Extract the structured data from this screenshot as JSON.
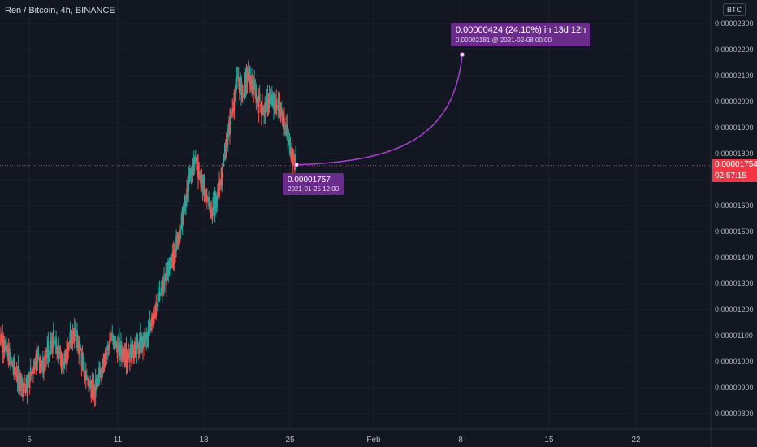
{
  "legend": {
    "title": "Ren / Bitcoin, 4h, BINANCE"
  },
  "currency": "BTC",
  "price_tag": {
    "price": "0.00001754",
    "countdown": "02:57:15"
  },
  "annotations": {
    "start_point": {
      "price": "0.00001757",
      "date": "2021-01-25 12:00"
    },
    "projection": {
      "main": "0.00000424 (24.10%) in 13d 12h",
      "sub": "0.00002181 @ 2021-02-08 00:00"
    }
  },
  "colors": {
    "background": "#131722",
    "up": "#26a69a",
    "down": "#ef5350",
    "projection": "#a83fd1",
    "annotation_bg": "#6a2c8a",
    "price_tag": "#f23645"
  },
  "chart_data": {
    "type": "candlestick",
    "symbol": "Ren / Bitcoin",
    "interval": "4h",
    "exchange": "BINANCE",
    "y_ticks": [
      "0.00000800",
      "0.00000900",
      "0.00001000",
      "0.00001100",
      "0.00001200",
      "0.00001300",
      "0.00001400",
      "0.00001500",
      "0.00001600",
      "0.00001700",
      "0.00001800",
      "0.00001900",
      "0.00002000",
      "0.00002100",
      "0.00002200",
      "0.00002300"
    ],
    "y_range": [
      7.7e-06,
      2.32e-05
    ],
    "x_ticks": [
      "5",
      "11",
      "18",
      "25",
      "Feb",
      "8",
      "15",
      "22"
    ],
    "current_price": 1.754e-05,
    "projection": {
      "from": 1.757e-05,
      "to": 2.181e-05,
      "change": "0.00000424 (24.10%)",
      "duration": "13d 12h",
      "end_date": "2021-02-08 00:00"
    },
    "candles_close_estimate": [
      1.09e-05,
      1.05e-05,
      1e-05,
      9.5e-06,
      9.2e-06,
      9e-06,
      9.7e-06,
      1.02e-05,
      9.8e-06,
      1.04e-05,
      1.08e-05,
      1.03e-05,
      9.9e-06,
      1.07e-05,
      1.11e-05,
      1.05e-05,
      9.5e-06,
      9.1e-06,
      8.9e-06,
      9.6e-06,
      1.03e-05,
      1.09e-05,
      1.06e-05,
      1.04e-05,
      1.02e-05,
      1.04e-05,
      1.06e-05,
      1.07e-05,
      1.1e-05,
      1.18e-05,
      1.24e-05,
      1.3e-05,
      1.36e-05,
      1.42e-05,
      1.5e-05,
      1.6e-05,
      1.72e-05,
      1.78e-05,
      1.7e-05,
      1.64e-05,
      1.58e-05,
      1.62e-05,
      1.72e-05,
      1.85e-05,
      1.97e-05,
      2.09e-05,
      2.03e-05,
      2.11e-05,
      2.05e-05,
      2e-05,
      1.96e-05,
      2.01e-05,
      1.99e-05,
      1.98e-05,
      1.91e-05,
      1.82e-05,
      1.76e-05
    ]
  }
}
